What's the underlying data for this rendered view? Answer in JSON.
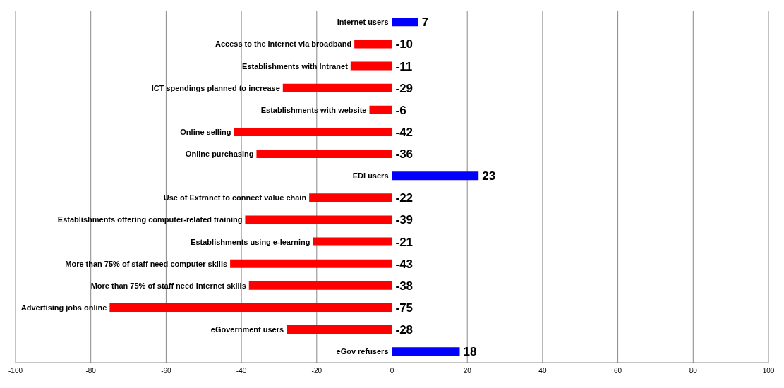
{
  "chart_data": {
    "type": "bar",
    "orientation": "horizontal",
    "categories": [
      "Internet users",
      "Access to the Internet via broadband",
      "Establishments with Intranet",
      "ICT spendings planned to increase",
      "Establishments with website",
      "Online selling",
      "Online purchasing",
      "EDI users",
      "Use of Extranet to connect value chain",
      "Establishments offering computer-related training",
      "Establishments using e-learning",
      "More than 75% of staff need computer skills",
      "More than 75% of staff need Internet skills",
      "Advertising jobs online",
      "eGovernment users",
      "eGov refusers"
    ],
    "values": [
      7,
      -10,
      -11,
      -29,
      -6,
      -42,
      -36,
      23,
      -22,
      -39,
      -21,
      -43,
      -38,
      -75,
      -28,
      18
    ],
    "colors": [
      "#0000ff",
      "#ff0000",
      "#ff0000",
      "#ff0000",
      "#ff0000",
      "#ff0000",
      "#ff0000",
      "#0000ff",
      "#ff0000",
      "#ff0000",
      "#ff0000",
      "#ff0000",
      "#ff0000",
      "#ff0000",
      "#ff0000",
      "#0000ff"
    ],
    "xlim": [
      -100,
      100
    ],
    "xticks": [
      -100,
      -80,
      -60,
      -40,
      -20,
      0,
      20,
      40,
      60,
      80,
      100
    ],
    "grid": "x",
    "data_labels": true,
    "legend": false
  }
}
